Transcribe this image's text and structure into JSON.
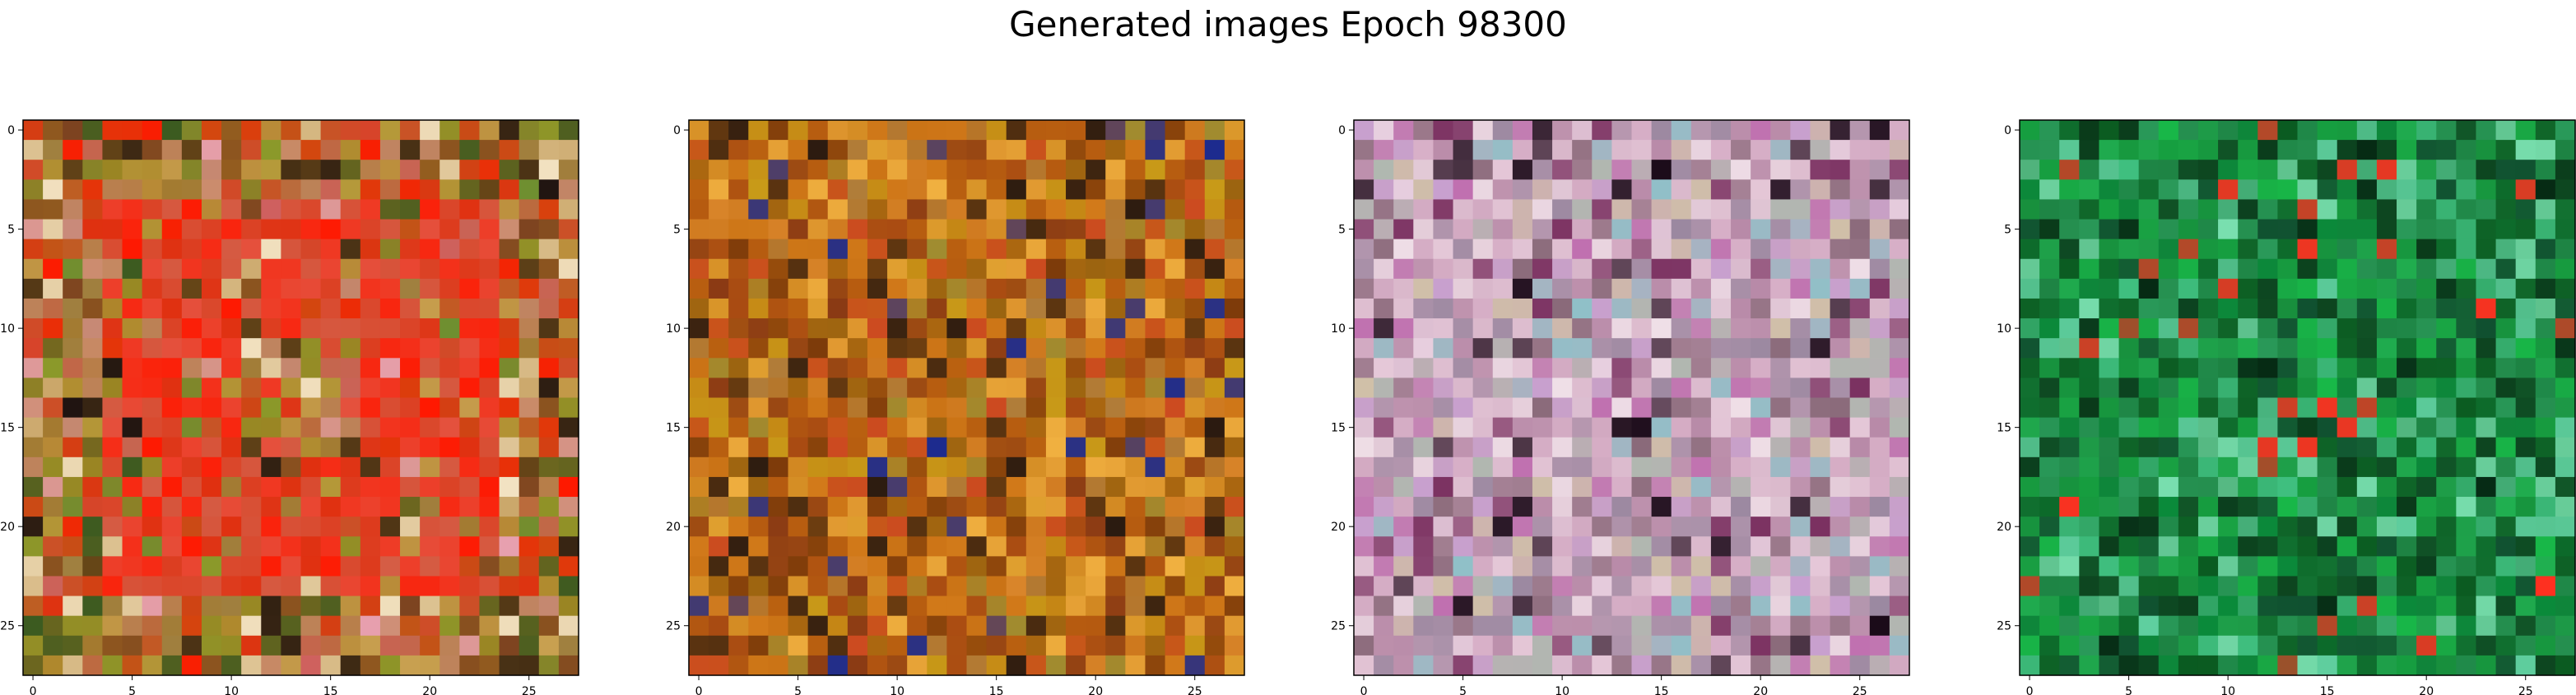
{
  "figure": {
    "title": "Generated images Epoch 98300"
  },
  "chart_data": [
    {
      "type": "heatmap",
      "grid_size": 28,
      "xlim": [
        -0.5,
        27.5
      ],
      "ylim": [
        27.5,
        -0.5
      ],
      "x_ticks": [
        "0",
        "5",
        "10",
        "15",
        "20",
        "25"
      ],
      "y_ticks": [
        "0",
        "5",
        "10",
        "15",
        "20",
        "25"
      ],
      "palette": {
        "base": "#a8741e",
        "colors": [
          "#8a9a2a",
          "#6f8f30",
          "#b59a3a",
          "#c8a050",
          "#e03010",
          "#ff1800",
          "#d8432a",
          "#c98a7a",
          "#e8a0b0",
          "#1a1010",
          "#7a4020",
          "#3a5a20",
          "#a08040",
          "#d06060",
          "#f3e3c3"
        ]
      },
      "motif": "red ring",
      "seed": 11
    },
    {
      "type": "heatmap",
      "grid_size": 28,
      "xlim": [
        -0.5,
        27.5
      ],
      "ylim": [
        27.5,
        -0.5
      ],
      "x_ticks": [
        "0",
        "5",
        "10",
        "15",
        "20",
        "25"
      ],
      "y_ticks": [
        "0",
        "5",
        "10",
        "15",
        "20",
        "25"
      ],
      "palette": {
        "base": "#c06a10",
        "colors": [
          "#b55a10",
          "#d27a1a",
          "#a84a12",
          "#c89a18",
          "#9a6410",
          "#e0a030",
          "#8a3a14",
          "#d9852a",
          "#b07d3a",
          "#2a1a10",
          "#7c3a0a",
          "#f0b040",
          "#cc4a20",
          "#a08c30",
          "#1a2a90"
        ]
      },
      "motif": "speckle",
      "seed": 23
    },
    {
      "type": "heatmap",
      "grid_size": 28,
      "xlim": [
        -0.5,
        27.5
      ],
      "ylim": [
        27.5,
        -0.5
      ],
      "x_ticks": [
        "0",
        "5",
        "10",
        "15",
        "20",
        "25"
      ],
      "y_ticks": [
        "0",
        "5",
        "10",
        "15",
        "20",
        "25"
      ],
      "palette": {
        "base": "#c9a0b8",
        "colors": [
          "#d8b0c8",
          "#b88aa8",
          "#e5c8d8",
          "#a890a8",
          "#c070b0",
          "#9a88a0",
          "#f0e0e8",
          "#b0b8b0",
          "#c8a0d0",
          "#8a6a7a",
          "#7a3060",
          "#d0c0a8",
          "#90c0c8",
          "#1a0a18",
          "#e8d0e0"
        ]
      },
      "motif": "speckle",
      "seed": 37
    },
    {
      "type": "heatmap",
      "grid_size": 28,
      "xlim": [
        -0.5,
        27.5
      ],
      "ylim": [
        27.5,
        -0.5
      ],
      "x_ticks": [
        "0",
        "5",
        "10",
        "15",
        "20",
        "25"
      ],
      "y_ticks": [
        "0",
        "5",
        "10",
        "15",
        "20",
        "25"
      ],
      "palette": {
        "base": "#1a7a3a",
        "colors": [
          "#0a8a3a",
          "#16a040",
          "#0c6a2a",
          "#208a4a",
          "#0a5a20",
          "#20b050",
          "#40c080",
          "#105030",
          "#062a14",
          "#2a9a5a",
          "#60d0a0",
          "#0a3a1a",
          "#18b848",
          "#7ae0b0",
          "#ff3020"
        ]
      },
      "motif": "speckle",
      "seed": 53
    }
  ]
}
